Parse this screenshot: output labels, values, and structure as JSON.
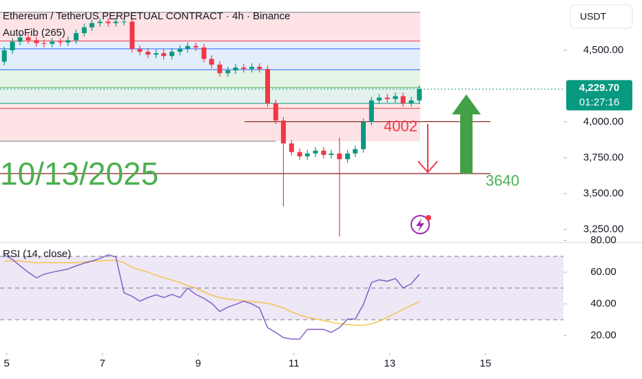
{
  "chart_data": [
    {
      "type": "candlestick",
      "title": "Ethereum / TetherUS PERPETUAL CONTRACT · 4h · Binance",
      "indicator": "AutoFib (265)",
      "currency": "USDT",
      "x": [
        4.95,
        5.12,
        5.28,
        5.45,
        5.62,
        5.78,
        5.95,
        6.12,
        6.28,
        6.45,
        6.62,
        6.78,
        6.95,
        7.12,
        7.28,
        7.45,
        7.62,
        7.78,
        7.95,
        8.12,
        8.28,
        8.45,
        8.62,
        8.78,
        8.95,
        9.12,
        9.28,
        9.45,
        9.62,
        9.78,
        9.95,
        10.12,
        10.28,
        10.45,
        10.62,
        10.78,
        10.95,
        11.12,
        11.28,
        11.45,
        11.62,
        11.78,
        11.95,
        12.12,
        12.28,
        12.45,
        12.62,
        12.78,
        12.95,
        13.12,
        13.28,
        13.45,
        13.62
      ],
      "open": [
        4420,
        4500,
        4560,
        4590,
        4570,
        4550,
        4545,
        4560,
        4555,
        4570,
        4620,
        4660,
        4690,
        4700,
        4690,
        4700,
        4700,
        4510,
        4490,
        4470,
        4480,
        4460,
        4490,
        4510,
        4530,
        4520,
        4440,
        4400,
        4340,
        4360,
        4380,
        4370,
        4385,
        4370,
        4130,
        4010,
        3850,
        3790,
        3760,
        3780,
        3800,
        3770,
        3780,
        3740,
        3780,
        3810,
        4000,
        4150,
        4170,
        4160,
        4180,
        4130,
        4150
      ],
      "high": [
        4525,
        4585,
        4615,
        4615,
        4595,
        4575,
        4585,
        4585,
        4595,
        4645,
        4685,
        4715,
        4725,
        4725,
        4725,
        4725,
        4720,
        4535,
        4515,
        4505,
        4505,
        4515,
        4535,
        4555,
        4555,
        4545,
        4465,
        4425,
        4385,
        4405,
        4405,
        4410,
        4410,
        4395,
        4155,
        4035,
        3875,
        3815,
        3805,
        3825,
        3825,
        3805,
        3890,
        3805,
        3835,
        4025,
        4175,
        4195,
        4195,
        4205,
        4205,
        4175,
        4255
      ],
      "low": [
        4395,
        4475,
        4535,
        4545,
        4525,
        4520,
        4520,
        4530,
        4530,
        4545,
        4595,
        4635,
        4665,
        4665,
        4665,
        4675,
        4485,
        4465,
        4445,
        4445,
        4435,
        4435,
        4465,
        4485,
        4495,
        4415,
        4375,
        4315,
        4315,
        4335,
        4345,
        4345,
        4345,
        4105,
        3985,
        3410,
        3765,
        3735,
        3735,
        3755,
        3745,
        3745,
        3200,
        3715,
        3755,
        3785,
        3975,
        4125,
        4135,
        4135,
        4105,
        4105,
        4125
      ],
      "close": [
        4500,
        4560,
        4590,
        4570,
        4550,
        4545,
        4560,
        4555,
        4570,
        4620,
        4660,
        4690,
        4700,
        4690,
        4700,
        4700,
        4510,
        4490,
        4470,
        4480,
        4460,
        4490,
        4510,
        4530,
        4520,
        4440,
        4400,
        4340,
        4360,
        4380,
        4370,
        4385,
        4370,
        4130,
        4010,
        3850,
        3790,
        3760,
        3780,
        3800,
        3770,
        3780,
        3740,
        3780,
        3810,
        4000,
        4150,
        4170,
        4160,
        4180,
        4130,
        4150,
        4230
      ],
      "up_color": "#089981",
      "down_color": "#f23645",
      "xlim": [
        4.86,
        16.63
      ],
      "ylim": [
        3168,
        4851
      ],
      "yticks": [
        {
          "value": 4500,
          "label": "4,500.00"
        },
        {
          "value": 4000,
          "label": "4,000.00"
        },
        {
          "value": 3750,
          "label": "3,750.00"
        },
        {
          "value": 3500,
          "label": "3,500.00"
        },
        {
          "value": 3250,
          "label": "3,250.00"
        }
      ],
      "fib_levels": [
        4765,
        4565,
        4510,
        4365,
        4240,
        4130,
        4095,
        3865
      ],
      "fib_line_colors": [
        "#787b86",
        "#f23645",
        "#2962ff",
        "#2962ff",
        "#4caf50",
        "#089981",
        "#f23645",
        "#787b86"
      ],
      "fib_fill_colors": [
        "#fde3e5",
        "#e6f0fc",
        "#e3eefb",
        "#e5f4e7",
        "#e3f2ee",
        "#fde8e9",
        "#fde3e5"
      ],
      "last_price": {
        "value": 4229.7,
        "label": "4,229.70"
      },
      "countdown": "01:27:16",
      "date_note": "10/13/2025",
      "annotations": [
        {
          "label": "4002",
          "value": 4002,
          "color": "#f23645"
        },
        {
          "label": "3640",
          "value": 3640,
          "color": "#4caf50"
        }
      ]
    },
    {
      "type": "line",
      "title": "RSI (14, close)",
      "x": [
        4.95,
        5.12,
        5.28,
        5.45,
        5.62,
        5.78,
        5.95,
        6.12,
        6.28,
        6.45,
        6.62,
        6.78,
        6.95,
        7.12,
        7.28,
        7.45,
        7.62,
        7.78,
        7.95,
        8.12,
        8.28,
        8.45,
        8.62,
        8.78,
        8.95,
        9.12,
        9.28,
        9.45,
        9.62,
        9.78,
        9.95,
        10.12,
        10.28,
        10.45,
        10.62,
        10.78,
        10.95,
        11.12,
        11.28,
        11.45,
        11.62,
        11.78,
        11.95,
        12.12,
        12.28,
        12.45,
        12.62,
        12.78,
        12.95,
        13.12,
        13.28,
        13.45,
        13.62
      ],
      "series": [
        {
          "color": "#7e57c2",
          "values": [
            70.9,
            68,
            64,
            60,
            56.5,
            58.7,
            60,
            61,
            62,
            64,
            65.7,
            67,
            68.7,
            71,
            69.6,
            47,
            44.8,
            41.7,
            44,
            45.7,
            44,
            46,
            44,
            50,
            46,
            43.5,
            40.4,
            35.2,
            38,
            39.6,
            41.7,
            40,
            37.4,
            25,
            22,
            18.7,
            17.8,
            17.8,
            23.9,
            23.9,
            23.9,
            22,
            25,
            30.4,
            30.4,
            39.6,
            53.5,
            55.2,
            54.3,
            56,
            50,
            52.6,
            58.7
          ]
        },
        {
          "color": "#f5c242",
          "values": [
            67,
            67,
            67,
            66.5,
            66,
            66,
            66,
            66,
            66,
            66,
            66.5,
            67,
            67,
            67.5,
            67.5,
            66,
            63,
            61.5,
            60,
            58,
            56.5,
            55,
            53.5,
            51.5,
            50,
            47.5,
            45.5,
            44,
            43,
            42.5,
            42,
            41.5,
            41,
            40.5,
            39,
            37.5,
            35,
            33,
            31.5,
            30.5,
            29.5,
            28.5,
            27.5,
            27,
            26.5,
            26.5,
            27.5,
            29,
            31.5,
            34,
            36.5,
            39,
            41.5
          ]
        }
      ],
      "bands": [
        70,
        50,
        30
      ],
      "band_fill": "#ede7f6",
      "xlim": [
        4.86,
        16.63
      ],
      "ylim": [
        10,
        78.7
      ],
      "xticks": [
        5,
        7,
        9,
        11,
        13,
        15
      ],
      "yticks": [
        {
          "value": 80,
          "label": "80.00"
        },
        {
          "value": 60,
          "label": "60.00"
        },
        {
          "value": 40,
          "label": "40.00"
        },
        {
          "value": 20,
          "label": "20.00"
        }
      ]
    }
  ]
}
